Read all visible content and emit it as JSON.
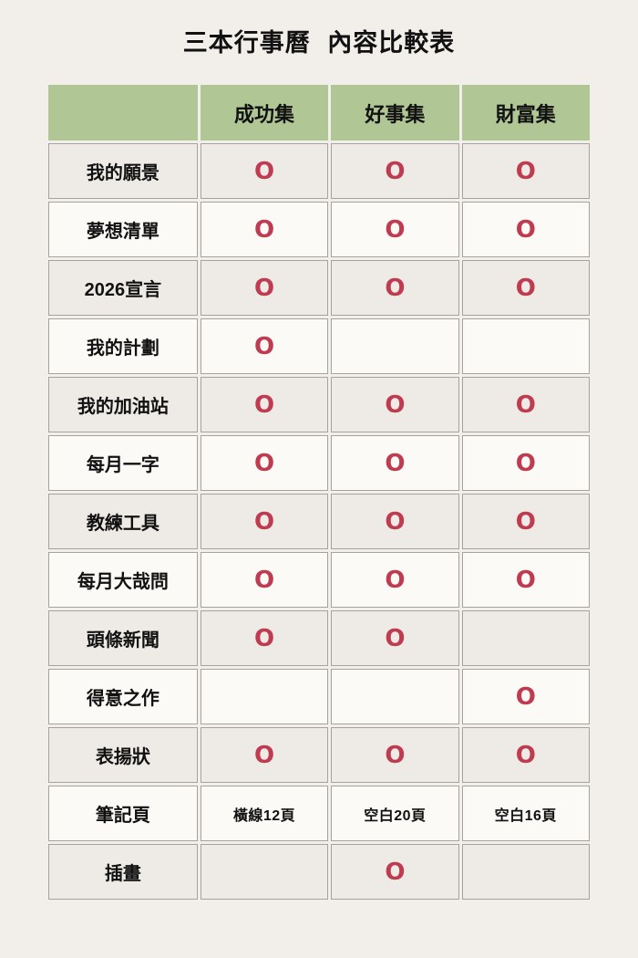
{
  "page": {
    "title": "三本行事曆 內容比較表"
  },
  "style": {
    "page_bg": "#f2efea",
    "header_bg": "#b0c795",
    "row_odd_bg": "#eeebe6",
    "row_even_bg": "#fcfaf7",
    "border_color": "#a6a39e",
    "mark_color": "#bf3b50",
    "text_color": "#111111"
  },
  "chart_data": {
    "type": "table",
    "title": "三本行事曆 內容比較表",
    "mark": "O",
    "columns": [
      "",
      "成功集",
      "好事集",
      "財富集"
    ],
    "rows": [
      {
        "label": "我的願景",
        "values": [
          "O",
          "O",
          "O"
        ]
      },
      {
        "label": "夢想清單",
        "values": [
          "O",
          "O",
          "O"
        ]
      },
      {
        "label": "2026宣言",
        "values": [
          "O",
          "O",
          "O"
        ]
      },
      {
        "label": "我的計劃",
        "values": [
          "O",
          "",
          ""
        ]
      },
      {
        "label": "我的加油站",
        "values": [
          "O",
          "O",
          "O"
        ]
      },
      {
        "label": "每月一字",
        "values": [
          "O",
          "O",
          "O"
        ]
      },
      {
        "label": "教練工具",
        "values": [
          "O",
          "O",
          "O"
        ]
      },
      {
        "label": "每月大哉問",
        "values": [
          "O",
          "O",
          "O"
        ]
      },
      {
        "label": "頭條新聞",
        "values": [
          "O",
          "O",
          ""
        ]
      },
      {
        "label": "得意之作",
        "values": [
          "",
          "",
          "O"
        ]
      },
      {
        "label": "表揚狀",
        "values": [
          "O",
          "O",
          "O"
        ]
      },
      {
        "label": "筆記頁",
        "values": [
          "橫線12頁",
          "空白20頁",
          "空白16頁"
        ]
      },
      {
        "label": "插畫",
        "values": [
          "",
          "O",
          ""
        ]
      }
    ]
  }
}
